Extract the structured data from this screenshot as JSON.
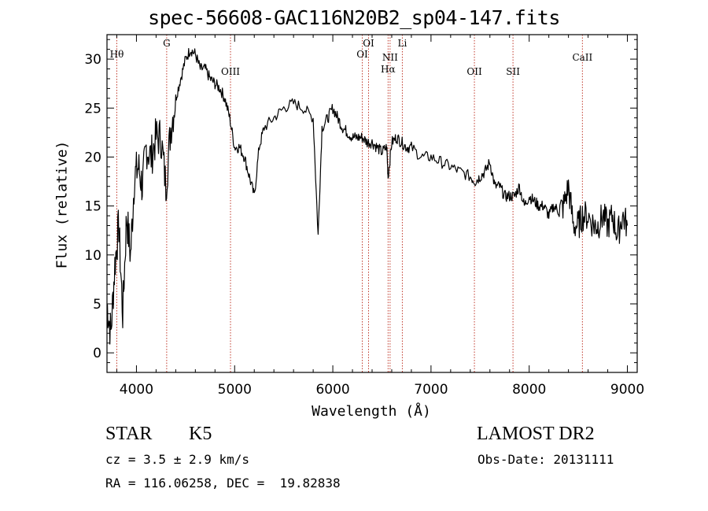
{
  "title": "spec-56608-GAC116N20B2_sp04-147.fits",
  "info": {
    "class": "STAR",
    "subclass": "K5",
    "survey": "LAMOST DR2",
    "cz": "cz = 3.5 ± 2.9 km/s",
    "obs_date": "Obs-Date: 20131111",
    "coords": "RA = 116.06258, DEC =  19.82838"
  },
  "chart_data": {
    "type": "line",
    "title": "spec-56608-GAC116N20B2_sp04-147.fits",
    "xlabel": "Wavelength (Å)",
    "ylabel": "Flux (relative)",
    "xlim": [
      3700,
      9100
    ],
    "ylim": [
      -2,
      32.5
    ],
    "xticks": [
      4000,
      5000,
      6000,
      7000,
      8000,
      9000
    ],
    "yticks": [
      0,
      5,
      10,
      15,
      20,
      25,
      30
    ],
    "line_color": "#000000",
    "marker_color": "#c0392b",
    "series": [
      {
        "x": [
          3700,
          3740,
          3780,
          3820,
          3860,
          3900,
          3940,
          3980,
          4020,
          4060,
          4100,
          4150,
          4200,
          4250,
          4300,
          4350,
          4400,
          4450,
          4500,
          4550,
          4600,
          4650,
          4700,
          4750,
          4800,
          4850,
          4900,
          4950,
          5000,
          5050,
          5100,
          5150,
          5200,
          5250,
          5300,
          5400,
          5500,
          5600,
          5700,
          5800,
          5850,
          5890,
          5950,
          6000,
          6050,
          6100,
          6150,
          6200,
          6250,
          6300,
          6350,
          6400,
          6450,
          6500,
          6550,
          6563,
          6600,
          6650,
          6700,
          6750,
          6800,
          6900,
          7000,
          7100,
          7200,
          7300,
          7400,
          7450,
          7500,
          7550,
          7600,
          7650,
          7700,
          7750,
          7800,
          7850,
          7900,
          7950,
          8000,
          8050,
          8100,
          8150,
          8200,
          8250,
          8300,
          8350,
          8400,
          8450,
          8500,
          8542,
          8600,
          8662,
          8700,
          8750,
          8800,
          8850,
          8900,
          8950,
          9000
        ],
        "values": [
          5,
          2,
          9,
          13,
          4,
          14,
          10,
          18,
          19,
          17,
          21,
          20,
          22,
          22,
          17,
          23,
          26,
          28,
          30,
          31,
          30.5,
          29,
          29,
          28,
          27.5,
          27,
          26,
          24,
          21,
          21,
          20,
          18,
          16,
          21,
          23,
          24,
          25,
          25.5,
          25,
          24,
          12,
          23,
          24,
          25,
          24,
          23,
          22.5,
          22,
          22,
          22,
          21.5,
          21.5,
          21,
          20.5,
          21,
          18,
          21.5,
          22,
          21.5,
          21,
          21,
          20,
          20,
          19.5,
          19,
          18.5,
          18,
          17.5,
          18,
          18.5,
          19.5,
          17,
          17,
          16,
          16,
          16,
          17,
          15,
          16,
          15.5,
          15,
          15,
          14,
          15,
          14.5,
          15,
          17,
          13,
          13,
          14,
          14,
          13,
          13,
          14,
          13,
          14,
          12,
          14,
          13
        ]
      }
    ],
    "markers": [
      {
        "wavelength": 3800,
        "label": "Hθ"
      },
      {
        "wavelength": 4308,
        "label": "G"
      },
      {
        "wavelength": 4958,
        "label": "OIII"
      },
      {
        "wavelength": 6300,
        "label": "OI"
      },
      {
        "wavelength": 6364,
        "label": "OI"
      },
      {
        "wavelength": 6563,
        "label": "Hα"
      },
      {
        "wavelength": 6583,
        "label": "NII"
      },
      {
        "wavelength": 6708,
        "label": "Li"
      },
      {
        "wavelength": 7442,
        "label": "OII"
      },
      {
        "wavelength": 7835,
        "label": "SII"
      },
      {
        "wavelength": 8542,
        "label": "CaII"
      }
    ]
  }
}
